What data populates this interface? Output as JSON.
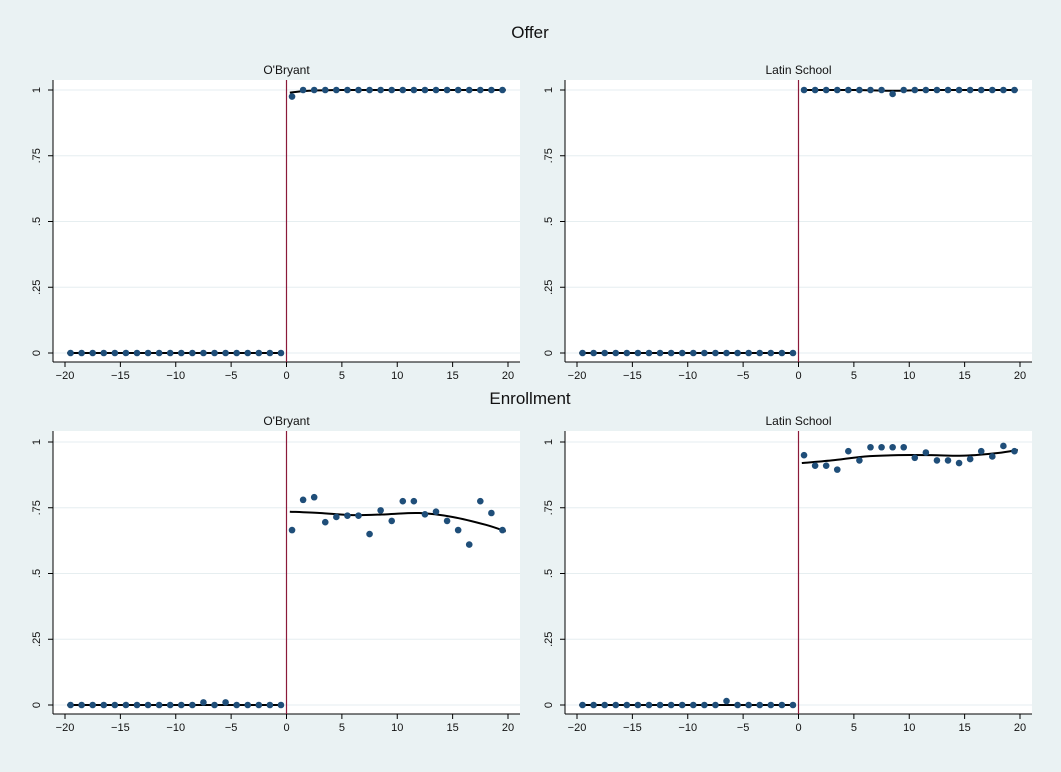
{
  "sections": [
    {
      "title": "Offer"
    },
    {
      "title": "Enrollment"
    }
  ],
  "chart_data": [
    {
      "type": "scatter",
      "section": "Offer",
      "title": "O'Bryant",
      "xlim": [
        -20,
        20
      ],
      "ylim": [
        0,
        1
      ],
      "xticks": [
        -20,
        -15,
        -10,
        -5,
        0,
        5,
        10,
        15,
        20
      ],
      "xtick_labels": [
        "−20",
        "−15",
        "−10",
        "−5",
        "0",
        "5",
        "10",
        "15",
        "20"
      ],
      "yticks": [
        0,
        0.25,
        0.5,
        0.75,
        1
      ],
      "ytick_labels": [
        "0",
        ".25",
        ".5",
        ".75",
        "1"
      ],
      "grid": true,
      "cutoff_line": 0,
      "points": {
        "x": [
          -19.5,
          -18.5,
          -17.5,
          -16.5,
          -15.5,
          -14.5,
          -13.5,
          -12.5,
          -11.5,
          -10.5,
          -9.5,
          -8.5,
          -7.5,
          -6.5,
          -5.5,
          -4.5,
          -3.5,
          -2.5,
          -1.5,
          -0.5,
          0.5,
          1.5,
          2.5,
          3.5,
          4.5,
          5.5,
          6.5,
          7.5,
          8.5,
          9.5,
          10.5,
          11.5,
          12.5,
          13.5,
          14.5,
          15.5,
          16.5,
          17.5,
          18.5,
          19.5
        ],
        "y": [
          0,
          0,
          0,
          0,
          0,
          0,
          0,
          0,
          0,
          0,
          0,
          0,
          0,
          0,
          0,
          0,
          0,
          0,
          0,
          0,
          0.975,
          1,
          1,
          1,
          1,
          1,
          1,
          1,
          1,
          1,
          1,
          1,
          1,
          1,
          1,
          1,
          1,
          1,
          1,
          1
        ]
      },
      "fit_right": {
        "x": [
          0.3,
          2,
          5,
          10,
          15,
          19.8
        ],
        "y": [
          0.99,
          0.997,
          1,
          1,
          1,
          1
        ]
      }
    },
    {
      "type": "scatter",
      "section": "Offer",
      "title": "Latin School",
      "xlim": [
        -20,
        20
      ],
      "ylim": [
        0,
        1
      ],
      "xticks": [
        -20,
        -15,
        -10,
        -5,
        0,
        5,
        10,
        15,
        20
      ],
      "xtick_labels": [
        "−20",
        "−15",
        "−10",
        "−5",
        "0",
        "5",
        "10",
        "15",
        "20"
      ],
      "yticks": [
        0,
        0.25,
        0.5,
        0.75,
        1
      ],
      "ytick_labels": [
        "0",
        ".25",
        ".5",
        ".75",
        "1"
      ],
      "grid": true,
      "cutoff_line": 0,
      "points": {
        "x": [
          -19.5,
          -18.5,
          -17.5,
          -16.5,
          -15.5,
          -14.5,
          -13.5,
          -12.5,
          -11.5,
          -10.5,
          -9.5,
          -8.5,
          -7.5,
          -6.5,
          -5.5,
          -4.5,
          -3.5,
          -2.5,
          -1.5,
          -0.5,
          0.5,
          1.5,
          2.5,
          3.5,
          4.5,
          5.5,
          6.5,
          7.5,
          8.5,
          9.5,
          10.5,
          11.5,
          12.5,
          13.5,
          14.5,
          15.5,
          16.5,
          17.5,
          18.5,
          19.5
        ],
        "y": [
          0,
          0,
          0,
          0,
          0,
          0,
          0,
          0,
          0,
          0,
          0,
          0,
          0,
          0,
          0,
          0,
          0,
          0,
          0,
          0,
          1,
          1,
          1,
          1,
          1,
          1,
          1,
          1,
          0.985,
          1,
          1,
          1,
          1,
          1,
          1,
          1,
          1,
          1,
          1,
          1
        ]
      },
      "fit_right": {
        "x": [
          0.3,
          5,
          8.5,
          12,
          19.8
        ],
        "y": [
          1,
          1,
          0.997,
          1,
          1
        ]
      }
    },
    {
      "type": "scatter",
      "section": "Enrollment",
      "title": "O'Bryant",
      "xlim": [
        -20,
        20
      ],
      "ylim": [
        0,
        1
      ],
      "xticks": [
        -20,
        -15,
        -10,
        -5,
        0,
        5,
        10,
        15,
        20
      ],
      "xtick_labels": [
        "−20",
        "−15",
        "−10",
        "−5",
        "0",
        "5",
        "10",
        "15",
        "20"
      ],
      "yticks": [
        0,
        0.25,
        0.5,
        0.75,
        1
      ],
      "ytick_labels": [
        "0",
        ".25",
        ".5",
        ".75",
        "1"
      ],
      "grid": true,
      "cutoff_line": 0,
      "points": {
        "x": [
          -19.5,
          -18.5,
          -17.5,
          -16.5,
          -15.5,
          -14.5,
          -13.5,
          -12.5,
          -11.5,
          -10.5,
          -9.5,
          -8.5,
          -7.5,
          -6.5,
          -5.5,
          -4.5,
          -3.5,
          -2.5,
          -1.5,
          -0.5,
          0.5,
          1.5,
          2.5,
          3.5,
          4.5,
          5.5,
          6.5,
          7.5,
          8.5,
          9.5,
          10.5,
          11.5,
          12.5,
          13.5,
          14.5,
          15.5,
          16.5,
          17.5,
          18.5,
          19.5
        ],
        "y": [
          0,
          0,
          0,
          0,
          0,
          0,
          0,
          0,
          0,
          0,
          0,
          0,
          0.01,
          0,
          0.01,
          0,
          0,
          0,
          0,
          0,
          0.665,
          0.78,
          0.79,
          0.695,
          0.715,
          0.72,
          0.72,
          0.65,
          0.74,
          0.7,
          0.775,
          0.775,
          0.725,
          0.735,
          0.7,
          0.665,
          0.61,
          0.775,
          0.73,
          0.665
        ]
      },
      "fit_right": {
        "x": [
          0.3,
          3,
          6,
          9,
          12,
          15,
          18,
          19.8
        ],
        "y": [
          0.735,
          0.73,
          0.722,
          0.725,
          0.73,
          0.715,
          0.685,
          0.66
        ]
      }
    },
    {
      "type": "scatter",
      "section": "Enrollment",
      "title": "Latin School",
      "xlim": [
        -20,
        20
      ],
      "ylim": [
        0,
        1
      ],
      "xticks": [
        -20,
        -15,
        -10,
        -5,
        0,
        5,
        10,
        15,
        20
      ],
      "xtick_labels": [
        "−20",
        "−15",
        "−10",
        "−5",
        "0",
        "5",
        "10",
        "15",
        "20"
      ],
      "yticks": [
        0,
        0.25,
        0.5,
        0.75,
        1
      ],
      "ytick_labels": [
        "0",
        ".25",
        ".5",
        ".75",
        "1"
      ],
      "grid": true,
      "cutoff_line": 0,
      "points": {
        "x": [
          -19.5,
          -18.5,
          -17.5,
          -16.5,
          -15.5,
          -14.5,
          -13.5,
          -12.5,
          -11.5,
          -10.5,
          -9.5,
          -8.5,
          -7.5,
          -6.5,
          -5.5,
          -4.5,
          -3.5,
          -2.5,
          -1.5,
          -0.5,
          0.5,
          1.5,
          2.5,
          3.5,
          4.5,
          5.5,
          6.5,
          7.5,
          8.5,
          9.5,
          10.5,
          11.5,
          12.5,
          13.5,
          14.5,
          15.5,
          16.5,
          17.5,
          18.5,
          19.5
        ],
        "y": [
          0,
          0,
          0,
          0,
          0,
          0,
          0,
          0,
          0,
          0,
          0,
          0,
          0,
          0.015,
          0,
          0,
          0,
          0,
          0,
          0,
          0.95,
          0.91,
          0.91,
          0.895,
          0.965,
          0.93,
          0.98,
          0.98,
          0.98,
          0.98,
          0.94,
          0.96,
          0.93,
          0.93,
          0.92,
          0.935,
          0.965,
          0.945,
          0.985,
          0.965
        ]
      },
      "fit_right": {
        "x": [
          0.3,
          3,
          6,
          9,
          12,
          15,
          18,
          19.8
        ],
        "y": [
          0.92,
          0.93,
          0.945,
          0.95,
          0.95,
          0.948,
          0.958,
          0.97
        ]
      }
    }
  ],
  "colors": {
    "background": "#eaf2f3",
    "plot_area": "#ffffff",
    "grid": "#e6eef0",
    "marker": "#1f4e79",
    "fit_line": "#000000",
    "cutoff": "#8b1a3a"
  }
}
